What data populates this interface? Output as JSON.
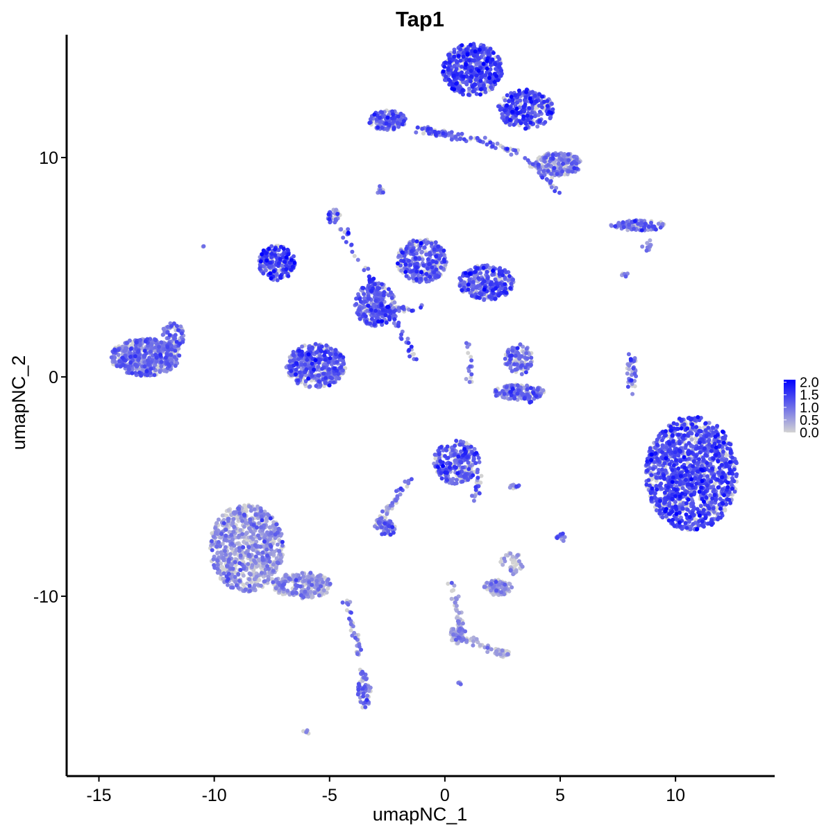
{
  "colors": {
    "low": "#d3d3d3",
    "high": "#0000ff",
    "axis": "#000000",
    "background": "#ffffff"
  },
  "chart_data": {
    "type": "scatter",
    "title": "Tap1",
    "xlabel": "umapNC_1",
    "ylabel": "umapNC_2",
    "xlim": [
      -16.4,
      14.3
    ],
    "ylim": [
      -18.2,
      15.6
    ],
    "x_ticks": [
      -15,
      -10,
      -5,
      0,
      5,
      10
    ],
    "x_tick_labels": [
      "-15",
      "-10",
      "-5",
      "0",
      "5",
      "10"
    ],
    "y_ticks": [
      -10,
      0,
      10
    ],
    "y_tick_labels": [
      "-10",
      "0",
      "10"
    ],
    "grid": false,
    "legend_position": "right",
    "color_scale": {
      "breaks": [
        0.0,
        0.5,
        1.0,
        1.5,
        2.0
      ],
      "labels": [
        "0.0",
        "0.5",
        "1.0",
        "1.5",
        "2.0"
      ],
      "min": 0.0,
      "max": 2.1
    },
    "clusters": [
      {
        "cx": -13.0,
        "cy": 0.9,
        "rx": 1.5,
        "ry": 0.85,
        "n": 500,
        "mean": 0.9
      },
      {
        "cx": -11.8,
        "cy": 1.8,
        "rx": 0.5,
        "ry": 0.7,
        "n": 70,
        "mean": 0.9
      },
      {
        "cx": -10.5,
        "cy": 6.0,
        "rx": 0.07,
        "ry": 0.07,
        "n": 3,
        "mean": 0.8
      },
      {
        "cx": -7.3,
        "cy": 5.2,
        "rx": 0.8,
        "ry": 0.8,
        "n": 220,
        "mean": 1.3
      },
      {
        "cx": -5.6,
        "cy": 0.5,
        "rx": 1.3,
        "ry": 1.0,
        "n": 400,
        "mean": 1.05
      },
      {
        "cx": -4.8,
        "cy": 7.3,
        "rx": 0.28,
        "ry": 0.35,
        "n": 35,
        "mean": 1.0
      },
      {
        "cx": -3.0,
        "cy": 3.3,
        "rx": 0.9,
        "ry": 1.0,
        "n": 250,
        "mean": 1.1
      },
      {
        "cx": -1.0,
        "cy": 5.3,
        "rx": 1.1,
        "ry": 1.0,
        "n": 300,
        "mean": 1.1
      },
      {
        "cx": 1.8,
        "cy": 4.3,
        "rx": 1.2,
        "ry": 0.8,
        "n": 280,
        "mean": 1.15
      },
      {
        "cx": -2.5,
        "cy": 11.7,
        "rx": 0.8,
        "ry": 0.45,
        "n": 160,
        "mean": 1.0
      },
      {
        "cx": 1.2,
        "cy": 14.0,
        "rx": 1.3,
        "ry": 1.2,
        "n": 520,
        "mean": 1.3
      },
      {
        "cx": 3.5,
        "cy": 12.2,
        "rx": 1.2,
        "ry": 0.9,
        "n": 300,
        "mean": 1.2
      },
      {
        "cx": 4.9,
        "cy": 9.7,
        "rx": 1.0,
        "ry": 0.55,
        "n": 220,
        "mean": 0.8
      },
      {
        "cx": -2.8,
        "cy": 8.5,
        "rx": 0.15,
        "ry": 0.2,
        "n": 12,
        "mean": 0.9
      },
      {
        "cx": 8.4,
        "cy": 6.9,
        "rx": 1.2,
        "ry": 0.25,
        "n": 90,
        "mean": 1.0
      },
      {
        "cx": 8.8,
        "cy": 6.0,
        "rx": 0.25,
        "ry": 0.25,
        "n": 10,
        "mean": 0.9
      },
      {
        "cx": 7.8,
        "cy": 4.7,
        "rx": 0.15,
        "ry": 0.2,
        "n": 5,
        "mean": 0.8
      },
      {
        "cx": 3.2,
        "cy": 0.8,
        "rx": 0.6,
        "ry": 0.7,
        "n": 110,
        "mean": 0.9
      },
      {
        "cx": 3.2,
        "cy": -0.7,
        "rx": 1.1,
        "ry": 0.35,
        "n": 130,
        "mean": 0.9
      },
      {
        "cx": 8.1,
        "cy": 0.2,
        "rx": 0.2,
        "ry": 1.2,
        "n": 40,
        "mean": 0.9
      },
      {
        "cx": 10.7,
        "cy": -4.4,
        "rx": 2.0,
        "ry": 2.6,
        "n": 1300,
        "mean": 1.25
      },
      {
        "cx": 0.5,
        "cy": -3.9,
        "rx": 1.0,
        "ry": 1.0,
        "n": 230,
        "mean": 1.15
      },
      {
        "cx": -2.5,
        "cy": -6.9,
        "rx": 0.4,
        "ry": 0.35,
        "n": 45,
        "mean": 1.0
      },
      {
        "cx": -8.6,
        "cy": -7.8,
        "rx": 1.6,
        "ry": 2.0,
        "n": 750,
        "mean": 0.55
      },
      {
        "cx": -6.2,
        "cy": -9.5,
        "rx": 1.3,
        "ry": 0.6,
        "n": 240,
        "mean": 0.55
      },
      {
        "cx": -3.5,
        "cy": -14.4,
        "rx": 0.3,
        "ry": 0.7,
        "n": 55,
        "mean": 0.9
      },
      {
        "cx": 2.3,
        "cy": -9.6,
        "rx": 0.6,
        "ry": 0.35,
        "n": 90,
        "mean": 0.5
      },
      {
        "cx": 2.9,
        "cy": -8.5,
        "rx": 0.5,
        "ry": 0.5,
        "n": 40,
        "mean": 0.4
      },
      {
        "cx": 0.5,
        "cy": -11.8,
        "rx": 0.3,
        "ry": 0.4,
        "n": 50,
        "mean": 0.4
      },
      {
        "cx": 2.5,
        "cy": -12.6,
        "rx": 0.3,
        "ry": 0.2,
        "n": 20,
        "mean": 0.4
      },
      {
        "cx": 5.0,
        "cy": -7.3,
        "rx": 0.2,
        "ry": 0.25,
        "n": 12,
        "mean": 0.8
      },
      {
        "cx": 3.0,
        "cy": -5.0,
        "rx": 0.3,
        "ry": 0.1,
        "n": 10,
        "mean": 0.8
      },
      {
        "cx": -6.0,
        "cy": -16.2,
        "rx": 0.15,
        "ry": 0.12,
        "n": 5,
        "mean": 0.8
      },
      {
        "cx": 0.6,
        "cy": -14.0,
        "rx": 0.1,
        "ry": 0.1,
        "n": 4,
        "mean": 0.9
      }
    ],
    "streaks": [
      {
        "x1": -4.5,
        "y1": 6.8,
        "x2": -1.2,
        "y2": 0.7,
        "n": 80,
        "mean": 1.2
      },
      {
        "x1": -1.2,
        "y1": 11.3,
        "x2": 0.8,
        "y2": 10.9,
        "n": 60,
        "mean": 1.0
      },
      {
        "x1": 0.8,
        "y1": 11.0,
        "x2": 3.2,
        "y2": 10.2,
        "n": 40,
        "mean": 0.9
      },
      {
        "x1": 3.5,
        "y1": 10.0,
        "x2": 5.0,
        "y2": 8.3,
        "n": 25,
        "mean": 0.9
      },
      {
        "x1": -3.0,
        "y1": -6.8,
        "x2": -1.5,
        "y2": -4.6,
        "n": 45,
        "mean": 0.9
      },
      {
        "x1": 0.3,
        "y1": -9.5,
        "x2": 0.8,
        "y2": -12.0,
        "n": 45,
        "mean": 0.6
      },
      {
        "x1": 0.5,
        "y1": -11.8,
        "x2": 2.5,
        "y2": -12.6,
        "n": 45,
        "mean": 0.5
      },
      {
        "x1": -4.3,
        "y1": -10.0,
        "x2": -3.5,
        "y2": -13.7,
        "n": 40,
        "mean": 0.8
      },
      {
        "x1": 1.5,
        "y1": -4.3,
        "x2": 1.3,
        "y2": -5.6,
        "n": 20,
        "mean": 1.1
      },
      {
        "x1": 2.7,
        "y1": -0.5,
        "x2": 3.8,
        "y2": -1.0,
        "n": 30,
        "mean": 1.0
      },
      {
        "x1": 1.0,
        "y1": 1.7,
        "x2": 1.1,
        "y2": -0.3,
        "n": 15,
        "mean": 0.9
      },
      {
        "x1": -3.0,
        "y1": 3.0,
        "x2": -0.8,
        "y2": 3.2,
        "n": 30,
        "mean": 1.1
      }
    ]
  }
}
